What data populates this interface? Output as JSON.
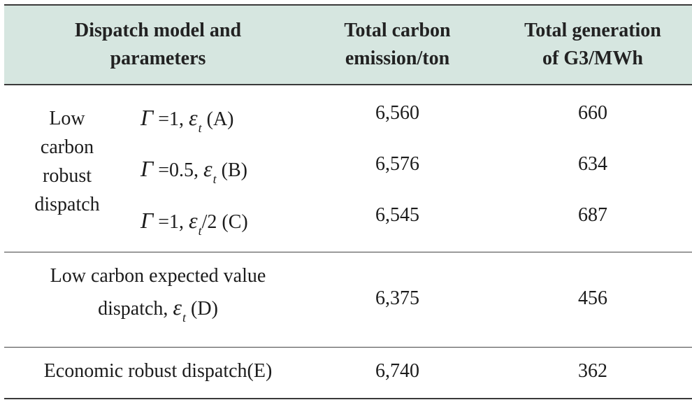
{
  "header": {
    "col1_line1": "Dispatch model and",
    "col1_line2": "parameters",
    "col2_line1": "Total carbon",
    "col2_line2": "emission/ton",
    "col3_line1": "Total generation",
    "col3_line2": "of G3/MWh"
  },
  "group": {
    "line1": "Low",
    "line2": "carbon",
    "line3": "robust",
    "line4": "dispatch"
  },
  "symbols": {
    "gamma": "Γ",
    "epsilon": "ε",
    "epsilon_sub": "t"
  },
  "rows": [
    {
      "gamma_eq": " =1, ",
      "eps_suffix": " (A)",
      "emission": "6,560",
      "generation": "660"
    },
    {
      "gamma_eq": " =0.5, ",
      "eps_suffix": " (B)",
      "emission": "6,576",
      "generation": "634"
    },
    {
      "gamma_eq": " =1, ",
      "eps_suffix": "/2 (C)",
      "emission": "6,545",
      "generation": "687"
    }
  ],
  "expected": {
    "line1": "Low carbon expected value",
    "line2_prefix": "dispatch, ",
    "line2_suffix": " (D)",
    "emission": "6,375",
    "generation": "456"
  },
  "economic": {
    "label": "Economic robust dispatch(E)",
    "emission": "6,740",
    "generation": "362"
  }
}
